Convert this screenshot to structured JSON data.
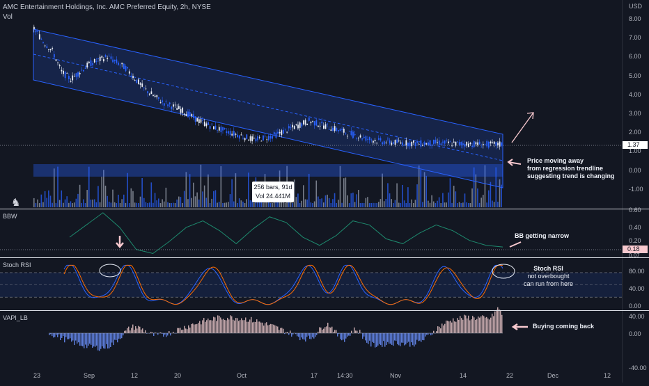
{
  "header": {
    "title": "AMC Entertainment Holdings, Inc. AMC Preferred Equity, 2h, NYSE",
    "vol_label": "Vol",
    "currency": "USD"
  },
  "price_axis": [
    "8.00",
    "7.00",
    "6.00",
    "5.00",
    "4.00",
    "3.00",
    "2.00",
    "1.00",
    "0.00",
    "-1.00"
  ],
  "last_price": "1.37",
  "x_axis": [
    "23",
    "Sep",
    "12",
    "20",
    "Oct",
    "17",
    "14:30",
    "Nov",
    "14",
    "22",
    "Dec",
    "12"
  ],
  "tooltip": {
    "bars": "256 bars, 91d",
    "vol": "Vol 24.441M"
  },
  "panes": {
    "bbw": {
      "title": "BBW",
      "axis": [
        "0.60",
        "0.40",
        "0.20"
      ],
      "value": "0.18",
      "clip": "0.07"
    },
    "stoch": {
      "title": "Stoch RSI",
      "axis": [
        "80.00",
        "40.00",
        "0.00"
      ]
    },
    "vapi": {
      "title": "VAPI_LB",
      "axis": [
        "40.00",
        "0.00",
        "-40.00"
      ]
    }
  },
  "annotations": {
    "price": [
      "Price moving away",
      "from regression trendline",
      "suggesting trend is changing"
    ],
    "bbw": "BB getting narrow",
    "stoch": [
      "Stoch RSI",
      "not overbought",
      "can run from here"
    ],
    "vapi": "Buying coming back"
  },
  "colors": {
    "background": "#131722",
    "channel": "#2962ff",
    "candle_up": "#e8ecf5",
    "candle_down": "#2962ff",
    "bbw_line": "#1e8a6e",
    "stoch_k": "#2962ff",
    "stoch_d": "#ff6d00",
    "vapi_pos": "#c0a4a8",
    "vapi_neg": "#5b7bd6",
    "arrow": "#f8c9cf"
  },
  "chart_data": [
    {
      "type": "line",
      "name": "price",
      "description": "2h candles, descending regression channel",
      "x": [
        0,
        5,
        10,
        15,
        20,
        30,
        40,
        50,
        60,
        70,
        80,
        90,
        100,
        110,
        120,
        130,
        140,
        150,
        160,
        170,
        180,
        190,
        200,
        210,
        220,
        230,
        240,
        250,
        256
      ],
      "values": [
        7.5,
        6.8,
        6.3,
        5.2,
        4.8,
        5.6,
        6.0,
        5.4,
        4.3,
        3.6,
        3.2,
        2.6,
        2.2,
        1.9,
        1.6,
        1.8,
        2.2,
        2.6,
        2.3,
        2.0,
        1.7,
        1.5,
        1.45,
        1.4,
        1.45,
        1.4,
        1.38,
        1.35,
        1.37
      ],
      "ylim": [
        -1.5,
        8.5
      ]
    },
    {
      "type": "bar",
      "name": "volume",
      "ylabel": "Vol"
    },
    {
      "type": "line",
      "name": "BBW",
      "values": [
        0.3,
        0.45,
        0.6,
        0.42,
        0.15,
        0.1,
        0.25,
        0.42,
        0.5,
        0.38,
        0.22,
        0.4,
        0.55,
        0.48,
        0.3,
        0.2,
        0.32,
        0.5,
        0.45,
        0.28,
        0.22,
        0.35,
        0.45,
        0.38,
        0.26,
        0.2,
        0.18
      ],
      "ylim": [
        0.07,
        0.65
      ]
    },
    {
      "type": "line",
      "name": "Stoch RSI",
      "ylim": [
        0,
        100
      ],
      "levels": [
        80,
        20
      ]
    },
    {
      "type": "bar",
      "name": "VAPI_LB",
      "ylim": [
        -55,
        45
      ]
    }
  ]
}
